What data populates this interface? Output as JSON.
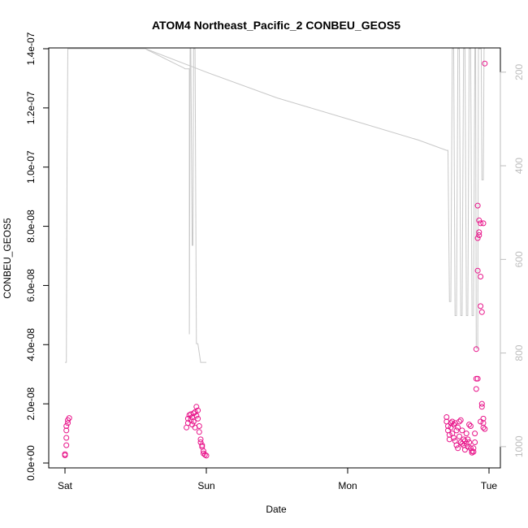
{
  "chart_data": {
    "type": "scatter",
    "title": "ATOM4 Northeast_Pacific_2 CONBEU_GEOS5",
    "xlabel": "Date",
    "ylabel": "CONBEU_GEOS5",
    "x_ticks": [
      "Sat",
      "Sun",
      "Mon",
      "Tue"
    ],
    "xlim": [
      -0.02,
      3.05
    ],
    "ylim": [
      0,
      1.4e-07
    ],
    "y_ticks": [
      {
        "value": 0,
        "label": "0.0e+00"
      },
      {
        "value": 2e-08,
        "label": "2.0e-08"
      },
      {
        "value": 4e-08,
        "label": "4.0e-08"
      },
      {
        "value": 6e-08,
        "label": "6.0e-08"
      },
      {
        "value": 8e-08,
        "label": "8.0e-08"
      },
      {
        "value": 1e-07,
        "label": "1.0e-07"
      },
      {
        "value": 1.2e-07,
        "label": "1.2e-07"
      },
      {
        "value": 1.4e-07,
        "label": "1.4e-07"
      }
    ],
    "y2lim": [
      1035,
      150
    ],
    "y2_ticks": [
      200,
      400,
      600,
      800,
      1000
    ],
    "grid": false,
    "series": [
      {
        "kind": "points",
        "color": "#e8158a",
        "points": [
          [
            0.0,
            2.6e-09
          ],
          [
            0.0,
            3e-09
          ],
          [
            0.01,
            6e-09
          ],
          [
            0.01,
            8.5e-09
          ],
          [
            0.01,
            1.1e-08
          ],
          [
            0.01,
            1.25e-08
          ],
          [
            0.02,
            1.35e-08
          ],
          [
            0.02,
            1.45e-08
          ],
          [
            0.03,
            1.52e-08
          ],
          [
            0.86,
            1.2e-08
          ],
          [
            0.87,
            1.35e-08
          ],
          [
            0.87,
            1.5e-08
          ],
          [
            0.88,
            1.62e-08
          ],
          [
            0.89,
            1.65e-08
          ],
          [
            0.89,
            1.45e-08
          ],
          [
            0.9,
            1.3e-08
          ],
          [
            0.9,
            1.55e-08
          ],
          [
            0.91,
            1.68e-08
          ],
          [
            0.91,
            1.4e-08
          ],
          [
            0.92,
            1.2e-08
          ],
          [
            0.92,
            1.72e-08
          ],
          [
            0.93,
            1.9e-08
          ],
          [
            0.93,
            1.6e-08
          ],
          [
            0.94,
            1.78e-08
          ],
          [
            0.94,
            1.5e-08
          ],
          [
            0.95,
            1.25e-08
          ],
          [
            0.95,
            1.05e-08
          ],
          [
            0.96,
            8e-09
          ],
          [
            0.96,
            7e-09
          ],
          [
            0.97,
            6e-09
          ],
          [
            0.97,
            5.5e-09
          ],
          [
            0.98,
            4e-09
          ],
          [
            0.98,
            3.2e-09
          ],
          [
            0.99,
            2.8e-09
          ],
          [
            1.0,
            2.5e-09
          ],
          [
            2.7,
            1.55e-08
          ],
          [
            2.7,
            1.4e-08
          ],
          [
            2.71,
            1.25e-08
          ],
          [
            2.71,
            1.1e-08
          ],
          [
            2.72,
            9.5e-09
          ],
          [
            2.72,
            8e-09
          ],
          [
            2.73,
            1.35e-08
          ],
          [
            2.73,
            1.2e-08
          ],
          [
            2.74,
            1.4e-08
          ],
          [
            2.74,
            1e-08
          ],
          [
            2.75,
            1.3e-08
          ],
          [
            2.75,
            8.5e-09
          ],
          [
            2.76,
            7.5e-09
          ],
          [
            2.76,
            1.35e-08
          ],
          [
            2.77,
            1.1e-08
          ],
          [
            2.77,
            6e-09
          ],
          [
            2.78,
            5e-09
          ],
          [
            2.78,
            1.2e-08
          ],
          [
            2.79,
            1.4e-08
          ],
          [
            2.79,
            9e-09
          ],
          [
            2.8,
            1.45e-08
          ],
          [
            2.8,
            7e-09
          ],
          [
            2.81,
            6.5e-09
          ],
          [
            2.81,
            1.1e-08
          ],
          [
            2.82,
            8e-09
          ],
          [
            2.82,
            6e-09
          ],
          [
            2.83,
            4.5e-09
          ],
          [
            2.83,
            7.5e-09
          ],
          [
            2.84,
            1e-08
          ],
          [
            2.84,
            6.5e-09
          ],
          [
            2.85,
            5.5e-09
          ],
          [
            2.85,
            8e-09
          ],
          [
            2.86,
            1.3e-08
          ],
          [
            2.86,
            7e-09
          ],
          [
            2.87,
            1.25e-08
          ],
          [
            2.87,
            5e-09
          ],
          [
            2.88,
            4e-09
          ],
          [
            2.88,
            3.5e-09
          ],
          [
            2.89,
            5e-09
          ],
          [
            2.89,
            3.8e-09
          ],
          [
            2.9,
            7e-09
          ],
          [
            2.9,
            1e-08
          ],
          [
            2.91,
            2.5e-08
          ],
          [
            2.91,
            2.85e-08
          ],
          [
            2.91,
            3.85e-08
          ],
          [
            2.92,
            6.5e-08
          ],
          [
            2.92,
            7.6e-08
          ],
          [
            2.92,
            8.7e-08
          ],
          [
            2.93,
            8.2e-08
          ],
          [
            2.93,
            7.8e-08
          ],
          [
            2.93,
            7.7e-08
          ],
          [
            2.94,
            8.1e-08
          ],
          [
            2.94,
            6.3e-08
          ],
          [
            2.94,
            5.3e-08
          ],
          [
            2.95,
            5.1e-08
          ],
          [
            2.95,
            2e-08
          ],
          [
            2.95,
            1.9e-08
          ],
          [
            2.96,
            1.5e-08
          ],
          [
            2.96,
            1.35e-08
          ],
          [
            2.96,
            1.2e-08
          ],
          [
            2.97,
            1.15e-08
          ],
          [
            2.96,
            8.1e-08
          ],
          [
            2.97,
            1.35e-07
          ],
          [
            2.92,
            2.85e-08
          ],
          [
            2.94,
            1.4e-08
          ]
        ]
      },
      {
        "kind": "line",
        "axis": "y2",
        "color": "#c8c8c8",
        "points": [
          [
            0.0,
            820
          ],
          [
            0.01,
            820
          ],
          [
            0.015,
            380
          ],
          [
            0.02,
            150
          ],
          [
            0.57,
            150
          ],
          [
            0.58,
            152
          ],
          [
            0.6,
            155
          ],
          [
            0.62,
            158
          ],
          [
            0.64,
            161
          ],
          [
            0.66,
            164
          ],
          [
            0.68,
            167
          ],
          [
            0.7,
            170
          ],
          [
            0.72,
            173
          ],
          [
            0.74,
            176
          ],
          [
            0.76,
            179
          ],
          [
            0.78,
            182
          ],
          [
            0.8,
            185
          ],
          [
            0.82,
            188
          ],
          [
            0.84,
            191
          ],
          [
            0.85,
            193
          ],
          [
            0.88,
            193
          ],
          [
            0.88,
            760
          ],
          [
            0.885,
            150
          ],
          [
            0.89,
            150
          ],
          [
            0.9,
            570
          ],
          [
            0.905,
            570
          ],
          [
            0.91,
            150
          ],
          [
            0.92,
            150
          ],
          [
            0.93,
            780
          ],
          [
            0.94,
            780
          ],
          [
            0.95,
            800
          ],
          [
            0.96,
            820
          ],
          [
            1.0,
            820
          ]
        ]
      },
      {
        "kind": "line",
        "axis": "y2",
        "color": "#c8c8c8",
        "points": [
          [
            0.57,
            150
          ],
          [
            1.0,
            200
          ],
          [
            1.5,
            255
          ],
          [
            2.0,
            300
          ],
          [
            2.5,
            345
          ],
          [
            2.7,
            367
          ],
          [
            2.71,
            367
          ],
          [
            2.72,
            690
          ],
          [
            2.73,
            690
          ],
          [
            2.74,
            150
          ],
          [
            2.75,
            150
          ],
          [
            2.76,
            720
          ],
          [
            2.77,
            720
          ],
          [
            2.78,
            150
          ],
          [
            2.79,
            150
          ],
          [
            2.8,
            720
          ],
          [
            2.81,
            720
          ],
          [
            2.82,
            150
          ],
          [
            2.83,
            150
          ],
          [
            2.84,
            720
          ],
          [
            2.85,
            720
          ],
          [
            2.86,
            150
          ],
          [
            2.87,
            150
          ],
          [
            2.88,
            720
          ],
          [
            2.89,
            720
          ],
          [
            2.9,
            150
          ],
          [
            2.905,
            150
          ],
          [
            2.91,
            790
          ],
          [
            2.92,
            790
          ],
          [
            2.925,
            150
          ],
          [
            2.93,
            150
          ],
          [
            2.945,
            150
          ],
          [
            2.95,
            430
          ],
          [
            2.96,
            430
          ],
          [
            2.965,
            150
          ],
          [
            2.97,
            150
          ]
        ]
      }
    ]
  }
}
